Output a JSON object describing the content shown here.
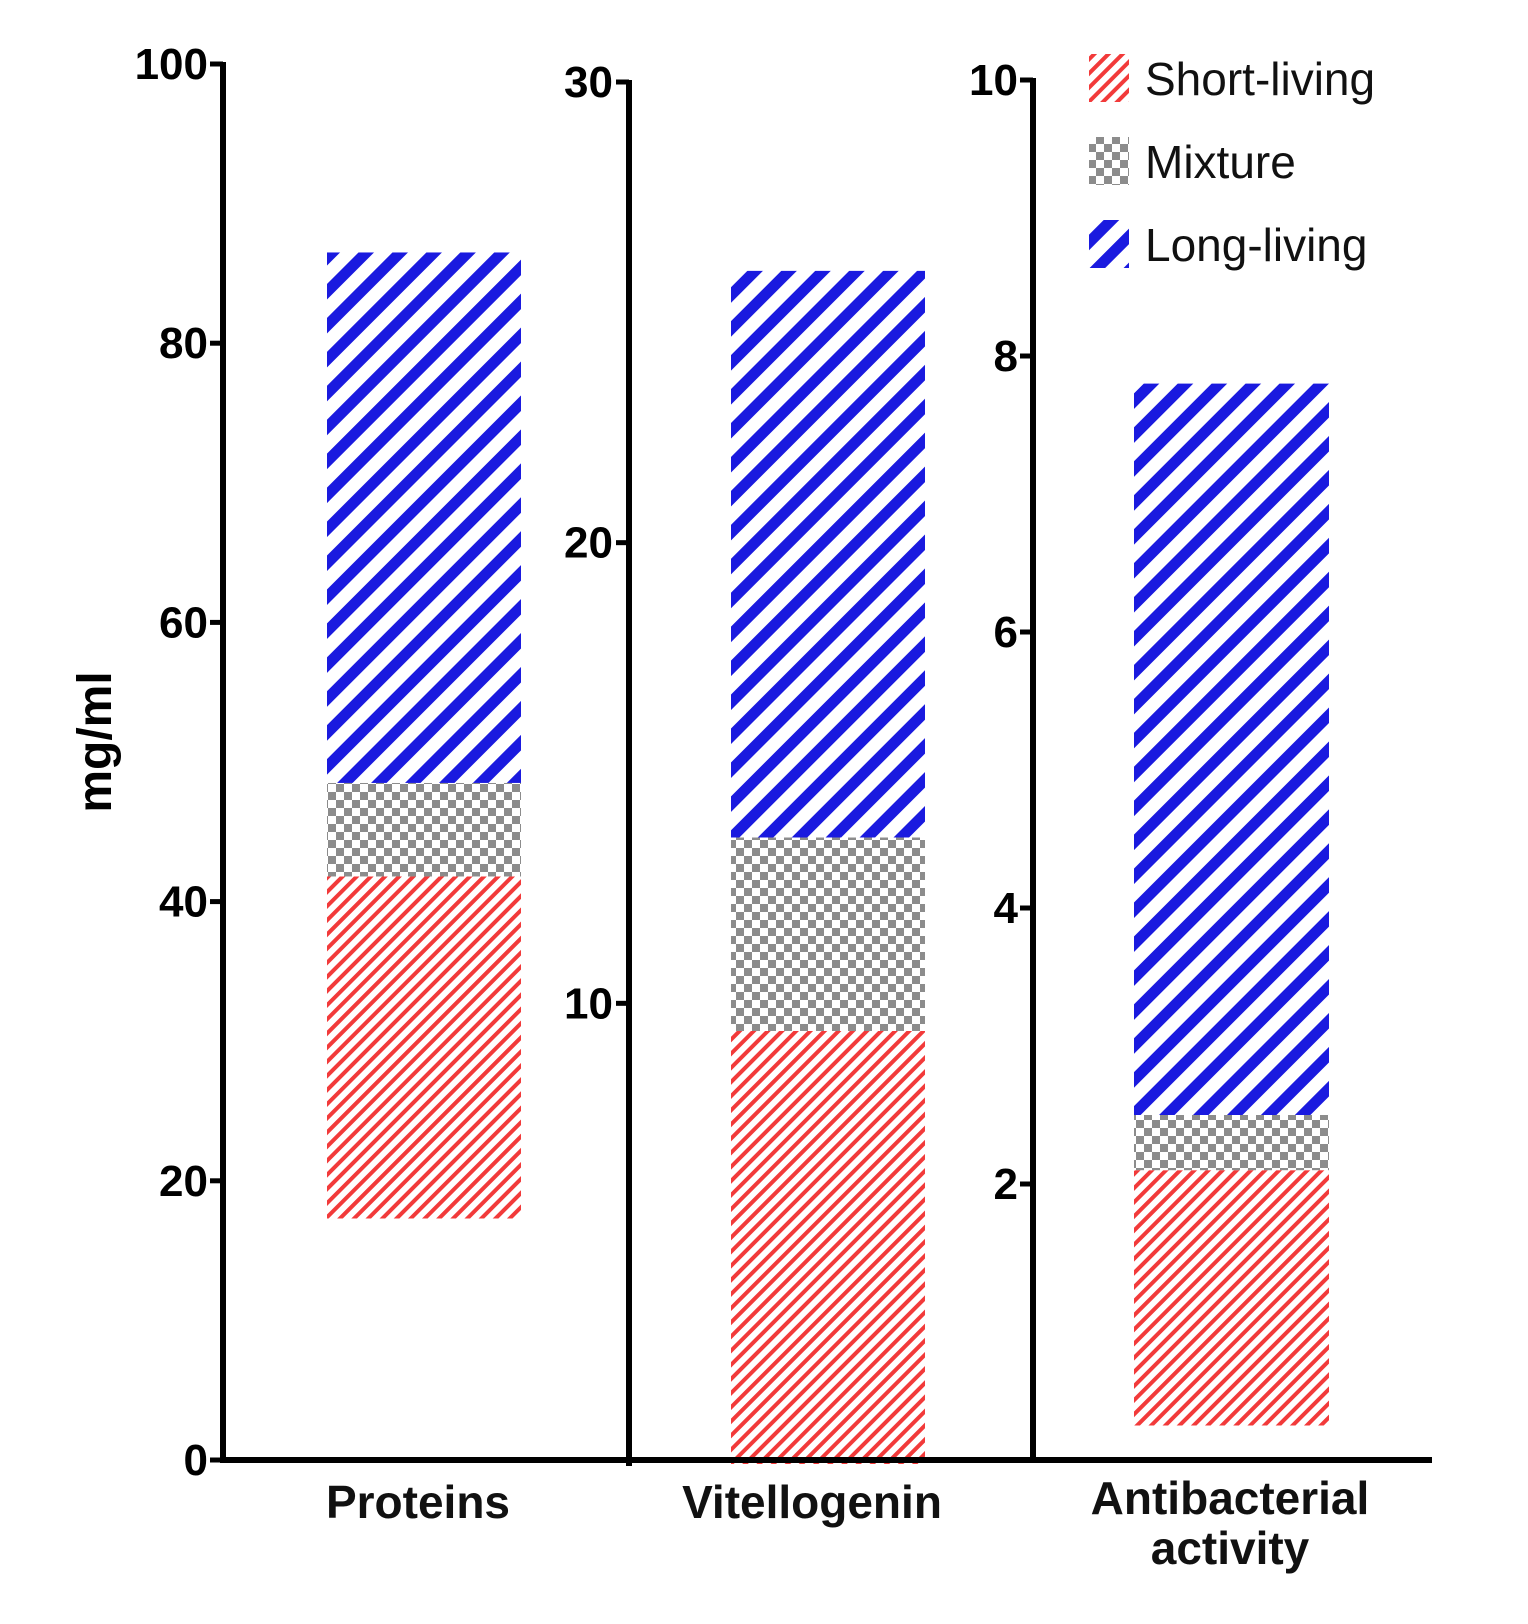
{
  "chart_data": {
    "type": "bar",
    "subtype": "floating-stacked",
    "ylabel": "mg/ml",
    "legend_position": "top-right",
    "colors": {
      "Short-living": "#f23a3a",
      "Mixture": "#8c8c8c",
      "Long-living": "#1a1adf"
    },
    "legend": [
      {
        "name": "Short-living",
        "pattern": "red-fine-diagonal"
      },
      {
        "name": "Mixture",
        "pattern": "gray-checker"
      },
      {
        "name": "Long-living",
        "pattern": "blue-wide-diagonal"
      }
    ],
    "panels": [
      {
        "category": "Proteins",
        "ylim": [
          0,
          100
        ],
        "yticks": [
          0,
          20,
          40,
          60,
          80,
          100
        ],
        "segments": [
          {
            "series": "Short-living",
            "from": 17.3,
            "to": 41.8
          },
          {
            "series": "Mixture",
            "from": 41.8,
            "to": 48.5
          },
          {
            "series": "Long-living",
            "from": 48.5,
            "to": 86.5
          }
        ]
      },
      {
        "category": "Vitellogenin",
        "ylim": [
          0,
          30
        ],
        "yticks": [
          10,
          20,
          30
        ],
        "segments": [
          {
            "series": "Short-living",
            "from": 0,
            "to": 9.4
          },
          {
            "series": "Mixture",
            "from": 9.4,
            "to": 13.6
          },
          {
            "series": "Long-living",
            "from": 13.6,
            "to": 25.9
          }
        ]
      },
      {
        "category": "Antibacterial activity",
        "ylim": [
          0,
          10
        ],
        "yticks": [
          2,
          4,
          6,
          8,
          10
        ],
        "segments": [
          {
            "series": "Short-living",
            "from": 0.25,
            "to": 2.1
          },
          {
            "series": "Mixture",
            "from": 2.1,
            "to": 2.5
          },
          {
            "series": "Long-living",
            "from": 2.5,
            "to": 7.8
          }
        ]
      }
    ]
  }
}
